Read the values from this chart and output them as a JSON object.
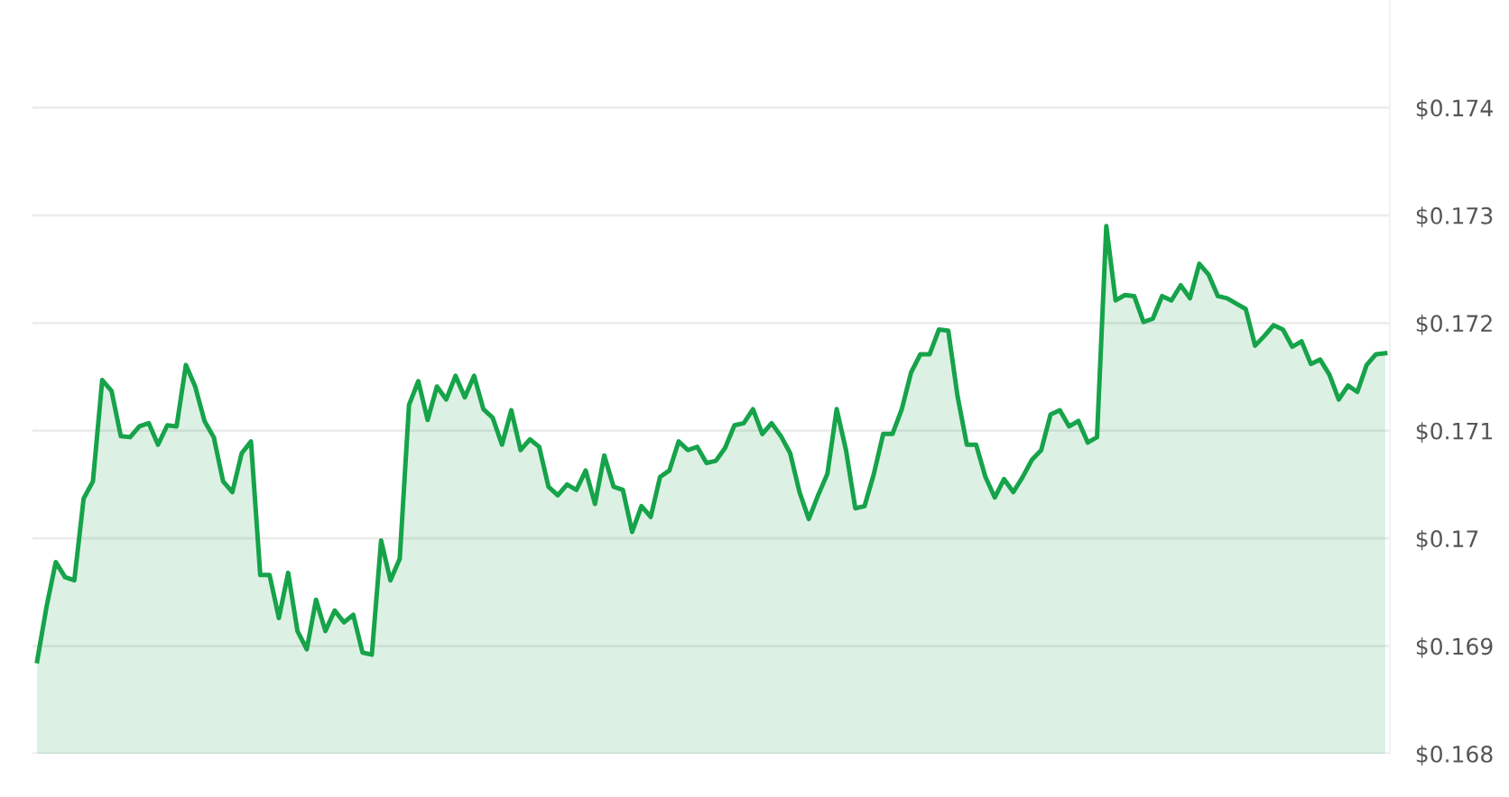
{
  "chart_data": {
    "type": "area",
    "categories": [
      null,
      null,
      null,
      null,
      null,
      null,
      null,
      null,
      null,
      null,
      null,
      null,
      null,
      null,
      null,
      null,
      null,
      null,
      null,
      null,
      null,
      null,
      null,
      null,
      null,
      null,
      null,
      null,
      null,
      null,
      null,
      null,
      null,
      null,
      null,
      null,
      null,
      null,
      null,
      null,
      null,
      null,
      null,
      null,
      null,
      null,
      null,
      null,
      null,
      null,
      null,
      null,
      null,
      null,
      null,
      null,
      null,
      null,
      null,
      null,
      null,
      null,
      null,
      null,
      null,
      null,
      null,
      null,
      null,
      null,
      null,
      null,
      null,
      null,
      null,
      null,
      null,
      null,
      null,
      null,
      null,
      null,
      null,
      null,
      null,
      null,
      null,
      null,
      null,
      null,
      null,
      null,
      null,
      null,
      null,
      null,
      null,
      null,
      null,
      null,
      null,
      null,
      null,
      null,
      null,
      null,
      null,
      null,
      null,
      null,
      null,
      null,
      null,
      null,
      null,
      null,
      null,
      null,
      null,
      null,
      null,
      null,
      null,
      null,
      null,
      null,
      null,
      null,
      null,
      null,
      null,
      null,
      null,
      null,
      null,
      null,
      null,
      null,
      null,
      null,
      null,
      null,
      null,
      null,
      null,
      null
    ],
    "series": [
      {
        "color": "#16a34a",
        "values": [
          0.16886,
          0.16936,
          0.16978,
          0.16964,
          0.16961,
          0.17037,
          0.17053,
          0.17147,
          0.17137,
          0.17095,
          0.17094,
          0.17104,
          0.17107,
          0.17087,
          0.17105,
          0.17104,
          0.17161,
          0.17141,
          0.17109,
          0.17094,
          0.17053,
          0.17043,
          0.17079,
          0.1709,
          0.16966,
          0.16966,
          0.16926,
          0.16968,
          0.16914,
          0.16897,
          0.16943,
          0.16914,
          0.16933,
          0.16922,
          0.16929,
          0.16894,
          0.16892,
          0.16998,
          0.16961,
          0.16981,
          0.17124,
          0.17146,
          0.1711,
          0.17141,
          0.17129,
          0.17151,
          0.17131,
          0.17151,
          0.1712,
          0.17112,
          0.17087,
          0.17119,
          0.17082,
          0.17092,
          0.17085,
          0.17048,
          0.1704,
          0.1705,
          0.17045,
          0.17063,
          0.17032,
          0.17077,
          0.17048,
          0.17045,
          0.17006,
          0.1703,
          0.1702,
          0.17057,
          0.17063,
          0.1709,
          0.17082,
          0.17085,
          0.1707,
          0.17072,
          0.17084,
          0.17105,
          0.17107,
          0.1712,
          0.17097,
          0.17107,
          0.17095,
          0.17079,
          0.17043,
          0.17018,
          0.1704,
          0.1706,
          0.1712,
          0.17082,
          0.17028,
          0.1703,
          0.1706,
          0.17097,
          0.17097,
          0.1712,
          0.17154,
          0.17171,
          0.17171,
          0.17194,
          0.17193,
          0.17132,
          0.17087,
          0.17087,
          0.17057,
          0.17038,
          0.17055,
          0.17043,
          0.17057,
          0.17073,
          0.17082,
          0.17115,
          0.17119,
          0.17104,
          0.17109,
          0.17089,
          0.17094,
          0.1729,
          0.17221,
          0.17226,
          0.17225,
          0.17201,
          0.17204,
          0.17225,
          0.17221,
          0.17235,
          0.17223,
          0.17255,
          0.17245,
          0.17225,
          0.17223,
          0.17218,
          0.17213,
          0.17179,
          0.17188,
          0.17198,
          0.17194,
          0.17178,
          0.17183,
          0.17162,
          0.17166,
          0.17152,
          0.17129,
          0.17142,
          0.17136,
          0.17161,
          0.17171,
          0.17172
        ]
      }
    ],
    "ylim": [
      0.168,
      0.175
    ],
    "yticks": [
      {
        "value": 0.168,
        "label": "$0.168"
      },
      {
        "value": 0.169,
        "label": "$0.169"
      },
      {
        "value": 0.17,
        "label": "$0.17"
      },
      {
        "value": 0.171,
        "label": "$0.171"
      },
      {
        "value": 0.172,
        "label": "$0.172"
      },
      {
        "value": 0.173,
        "label": "$0.173"
      },
      {
        "value": 0.174,
        "label": "$0.174"
      }
    ],
    "grid": "y",
    "tick_labels": "y"
  }
}
